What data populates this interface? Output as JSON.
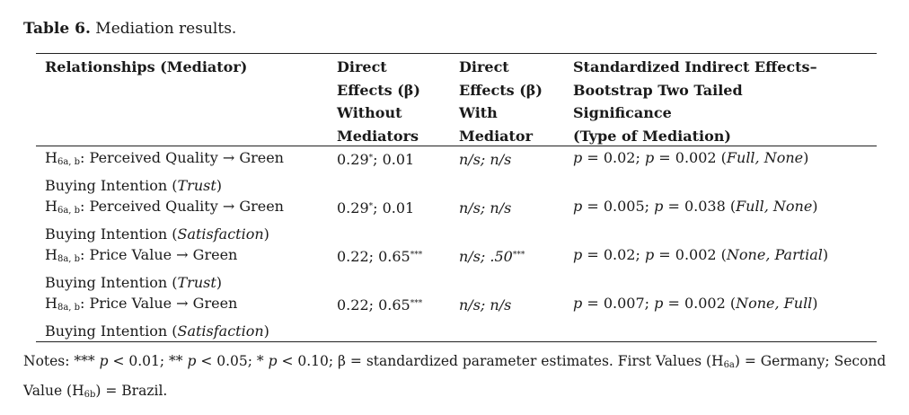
{
  "caption": {
    "label": "Table 6.",
    "text": "Mediation results."
  },
  "columns": [
    {
      "lines": [
        "Relationships (Mediator)"
      ]
    },
    {
      "lines": [
        "Direct",
        "Effects (β)",
        "Without",
        "Mediators"
      ]
    },
    {
      "lines": [
        "Direct",
        "Effects (β)",
        "With",
        "Mediator"
      ]
    },
    {
      "lines": [
        "Standardized Indirect Effects–",
        "Bootstrap Two Tailed",
        "Significance",
        "(Type of Mediation)"
      ]
    }
  ],
  "rows": [
    {
      "hyp": "H",
      "hyp_sub": "6a, b",
      "rel_line1": ": Perceived Quality → Green",
      "rel_line2_pre": "Buying Intention (",
      "mediator": "Trust",
      "rel_line2_post": ")",
      "direct_without": "0.29",
      "direct_without_sup": "*",
      "direct_without_rest": "; 0.01",
      "direct_with": "n/s; n/s",
      "direct_with_sup": "",
      "indirect": "p = 0.02; p = 0.002 (Full, None)"
    },
    {
      "hyp": "H",
      "hyp_sub": "6a, b",
      "rel_line1": ": Perceived Quality → Green",
      "rel_line2_pre": "Buying Intention (",
      "mediator": "Satisfaction",
      "rel_line2_post": ")",
      "direct_without": "0.29",
      "direct_without_sup": "*",
      "direct_without_rest": "; 0.01",
      "direct_with": "n/s; n/s",
      "direct_with_sup": "",
      "indirect": "p = 0.005; p = 0.038 (Full, None)"
    },
    {
      "hyp": "H",
      "hyp_sub": "8a, b",
      "rel_line1": ": Price Value → Green",
      "rel_line2_pre": "Buying Intention (",
      "mediator": "Trust",
      "rel_line2_post": ")",
      "direct_without": "0.22; 0.65",
      "direct_without_sup": "***",
      "direct_without_rest": "",
      "direct_with": "n/s; .50",
      "direct_with_sup": "***",
      "indirect": "p = 0.02; p = 0.002 (None, Partial)"
    },
    {
      "hyp": "H",
      "hyp_sub": "8a, b",
      "rel_line1": ": Price Value → Green",
      "rel_line2_pre": "Buying Intention (",
      "mediator": "Satisfaction",
      "rel_line2_post": ")",
      "direct_without": "0.22; 0.65",
      "direct_without_sup": "***",
      "direct_without_rest": "",
      "direct_with": "n/s; n/s",
      "direct_with_sup": "",
      "indirect": "p = 0.007; p = 0.002 (None, Full)"
    }
  ],
  "notes": {
    "p1": "Notes: *** ",
    "p1_i": "p",
    "p2": " < 0.01; ** ",
    "p2_i": "p",
    "p3": " < 0.05; * ",
    "p3_i": "p",
    "p4": " < 0.10; β = standardized parameter estimates. First Values (H",
    "sub1": "6a",
    "p5": ") = Germany; Second Value (H",
    "sub2": "6b",
    "p6": ") = Brazil."
  }
}
